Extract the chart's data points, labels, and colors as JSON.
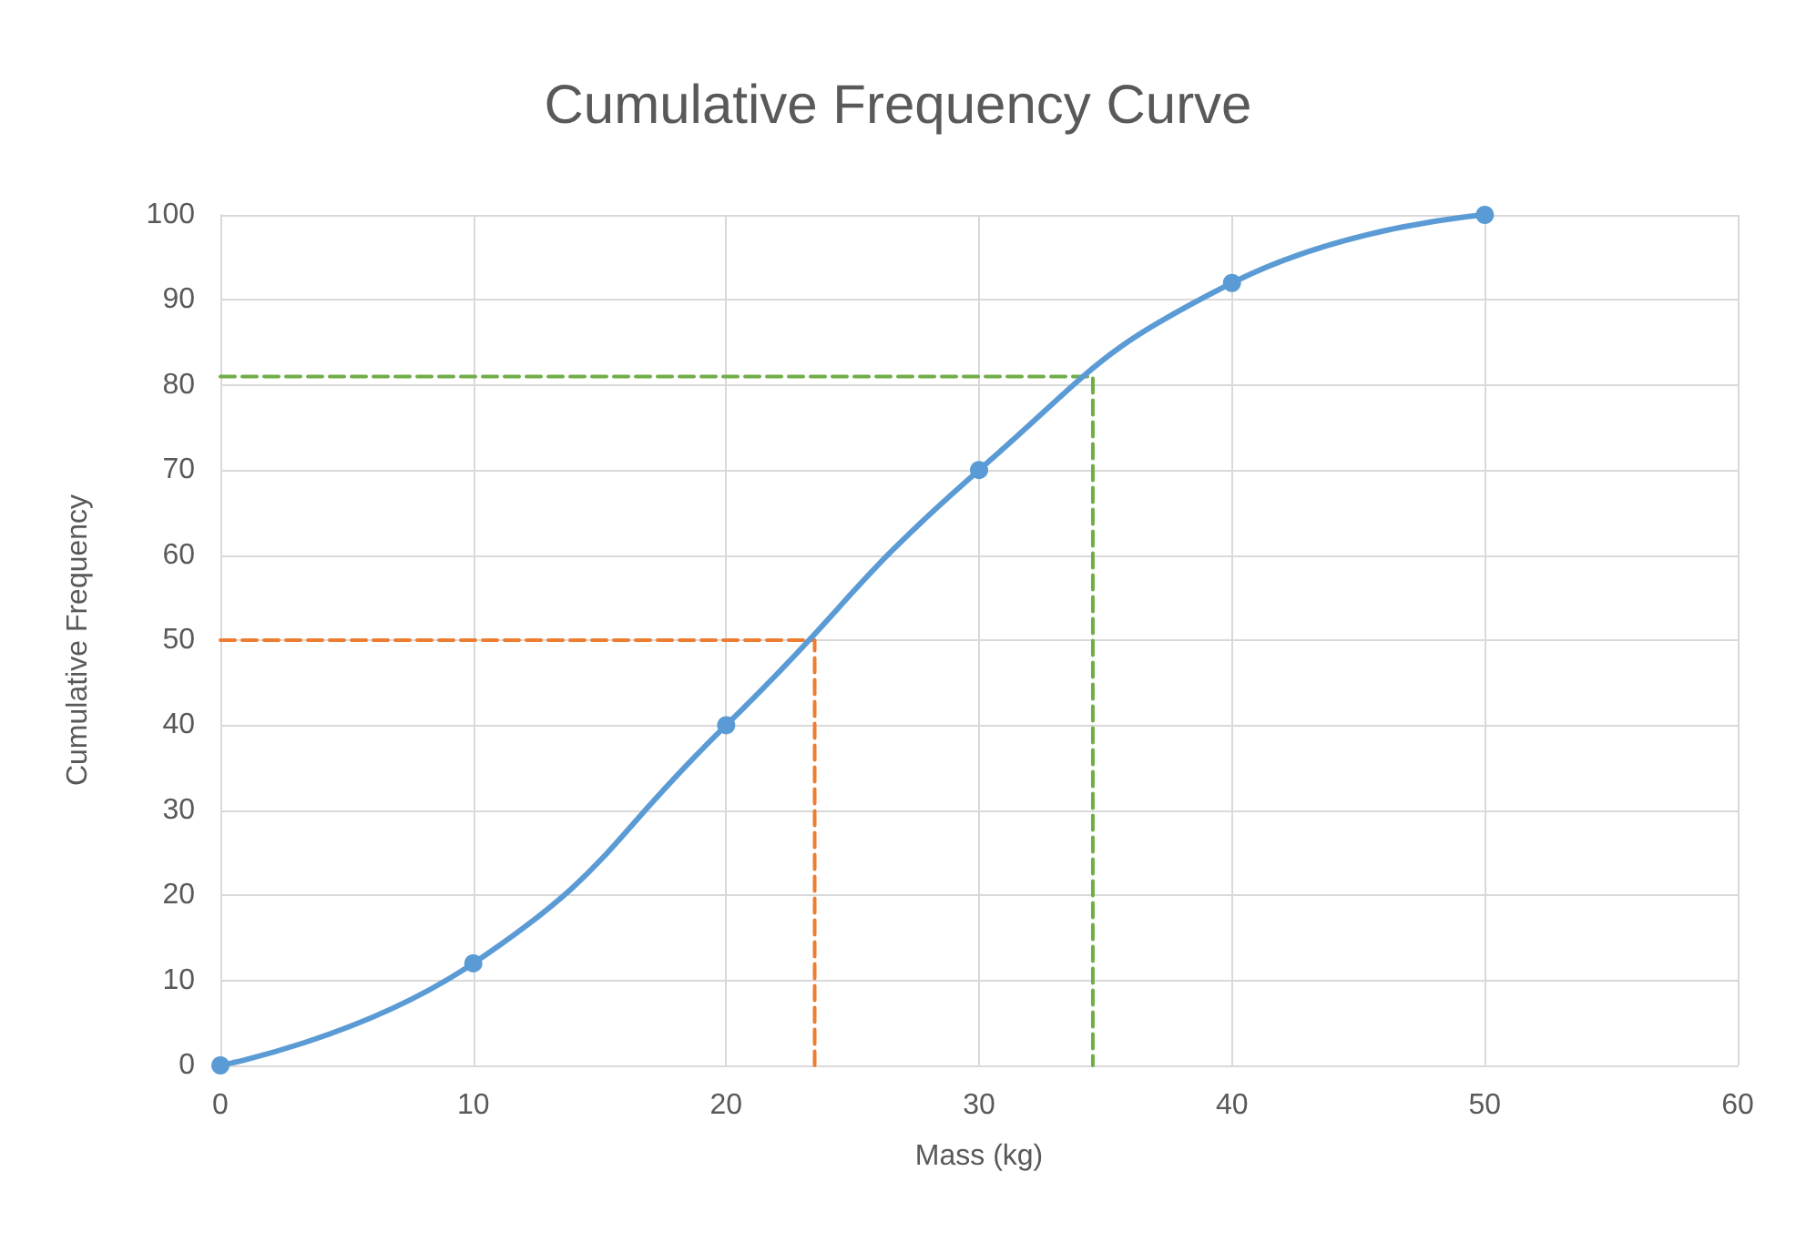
{
  "chart_data": {
    "type": "line",
    "title": "Cumulative Frequency Curve",
    "xlabel": "Mass (kg)",
    "ylabel": "Cumulative Frequency",
    "xlim": [
      0,
      60
    ],
    "xticks": [
      0,
      10,
      20,
      30,
      40,
      50,
      60
    ],
    "ylim": [
      0,
      100
    ],
    "yticks": [
      0,
      10,
      20,
      30,
      40,
      50,
      60,
      70,
      80,
      90,
      100
    ],
    "grid": true,
    "series": [
      {
        "color": "#5b9bd5",
        "x": [
          0,
          10,
          20,
          30,
          40,
          50
        ],
        "values": [
          0,
          12,
          40,
          70,
          92,
          100
        ],
        "marker": "circle",
        "line_style": "solid"
      },
      {
        "color": "#ed7d31",
        "x": [
          0,
          23.5,
          23.5
        ],
        "values": [
          50,
          50,
          0
        ],
        "marker": "none",
        "line_style": "dashed"
      },
      {
        "color": "#70ad47",
        "x": [
          0,
          34.5,
          34.5
        ],
        "values": [
          81,
          81,
          0
        ],
        "marker": "none",
        "line_style": "dashed"
      }
    ]
  }
}
